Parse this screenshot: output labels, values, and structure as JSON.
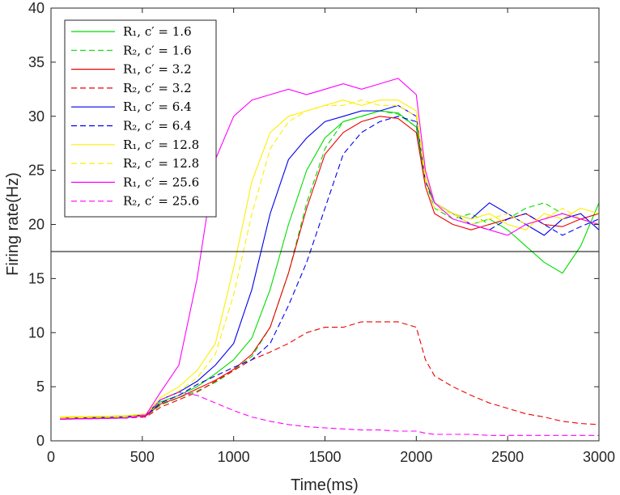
{
  "chart_data": {
    "type": "line",
    "title": "",
    "xlabel": "Time(ms)",
    "ylabel": "Firing rate(Hz)",
    "xlim": [
      0,
      3000
    ],
    "ylim": [
      0,
      40
    ],
    "xticks": [
      0,
      500,
      1000,
      1500,
      2000,
      2500,
      3000
    ],
    "yticks": [
      0,
      5,
      10,
      15,
      20,
      25,
      30,
      35,
      40
    ],
    "grid": false,
    "legend_position": "top-left",
    "threshold": {
      "y": 17.5,
      "color": "#000000"
    },
    "series": [
      {
        "name": "R₁, c′ = 1.6",
        "color": "#00dd00",
        "dash": "solid",
        "x": [
          50,
          400,
          520,
          600,
          700,
          800,
          900,
          1000,
          1100,
          1200,
          1300,
          1400,
          1500,
          1600,
          1700,
          1800,
          1900,
          2000,
          2050,
          2100,
          2200,
          2300,
          2400,
          2500,
          2600,
          2700,
          2800,
          2900,
          3000
        ],
        "y": [
          2.2,
          2.3,
          2.4,
          3.6,
          4.2,
          5,
          6.2,
          7.5,
          9.5,
          14,
          20,
          25,
          28,
          29.5,
          30,
          30.5,
          30.3,
          29,
          24,
          22,
          21,
          20,
          20.5,
          19.5,
          18,
          16.5,
          15.5,
          18,
          22
        ]
      },
      {
        "name": "R₂, c′ = 1.6",
        "color": "#00dd00",
        "dash": "dashed",
        "x": [
          50,
          400,
          520,
          600,
          700,
          800,
          900,
          1000,
          1100,
          1200,
          1300,
          1400,
          1500,
          1600,
          1700,
          1800,
          1900,
          2000,
          2050,
          2100,
          2200,
          2300,
          2400,
          2500,
          2600,
          2700,
          2800,
          2900,
          3000
        ],
        "y": [
          2.0,
          2.1,
          2.3,
          3.3,
          4.0,
          4.6,
          5.4,
          6.5,
          7.8,
          10.5,
          15.5,
          22,
          27,
          29.5,
          30,
          30.5,
          30.2,
          29,
          24,
          21.5,
          20.5,
          21,
          20,
          20.5,
          21.5,
          22,
          21,
          20.5,
          20
        ]
      },
      {
        "name": "R₁, c′ = 3.2",
        "color": "#ee0000",
        "dash": "solid",
        "x": [
          50,
          400,
          520,
          600,
          700,
          800,
          900,
          1000,
          1100,
          1200,
          1300,
          1400,
          1500,
          1600,
          1700,
          1800,
          1900,
          2000,
          2050,
          2100,
          2200,
          2300,
          2400,
          2500,
          2600,
          2700,
          2800,
          2900,
          3000
        ],
        "y": [
          2.1,
          2.2,
          2.3,
          3.4,
          4.0,
          4.8,
          5.6,
          6.6,
          8.0,
          10.5,
          15.5,
          21.5,
          26.5,
          28.5,
          29.5,
          30,
          29.8,
          28.5,
          23.5,
          21,
          20,
          19.5,
          20,
          20.5,
          21,
          20,
          19.8,
          20.5,
          21
        ]
      },
      {
        "name": "R₂, c′ = 3.2",
        "color": "#ee0000",
        "dash": "dashed",
        "x": [
          50,
          400,
          520,
          600,
          700,
          800,
          900,
          1000,
          1100,
          1200,
          1300,
          1400,
          1500,
          1600,
          1700,
          1800,
          1900,
          2000,
          2050,
          2100,
          2200,
          2300,
          2400,
          2500,
          2600,
          2700,
          2800,
          2900,
          3000
        ],
        "y": [
          2.0,
          2.1,
          2.2,
          3.1,
          3.8,
          4.5,
          5.5,
          6.5,
          7.5,
          8.2,
          9.0,
          10.0,
          10.5,
          10.5,
          11.0,
          11.0,
          11.0,
          10.5,
          7.5,
          6.0,
          5.0,
          4.2,
          3.5,
          3.0,
          2.5,
          2.2,
          1.8,
          1.6,
          1.5
        ]
      },
      {
        "name": "R₁, c′ = 6.4",
        "color": "#0000ee",
        "dash": "solid",
        "x": [
          50,
          400,
          520,
          600,
          700,
          800,
          900,
          1000,
          1100,
          1200,
          1300,
          1400,
          1500,
          1600,
          1700,
          1800,
          1900,
          2000,
          2050,
          2100,
          2200,
          2300,
          2400,
          2500,
          2600,
          2700,
          2800,
          2900,
          3000
        ],
        "y": [
          2.0,
          2.2,
          2.4,
          3.8,
          4.5,
          5.5,
          7.0,
          9.0,
          14.0,
          21.0,
          26.0,
          28.0,
          29.5,
          30.0,
          30.5,
          30.5,
          31.0,
          30.0,
          24.0,
          22.0,
          21.0,
          20.5,
          22.0,
          21.0,
          20.0,
          19.0,
          20.5,
          21.0,
          19.5
        ]
      },
      {
        "name": "R₂, c′ = 6.4",
        "color": "#0000ee",
        "dash": "dashed",
        "x": [
          50,
          400,
          520,
          600,
          700,
          800,
          900,
          1000,
          1100,
          1200,
          1300,
          1400,
          1500,
          1600,
          1700,
          1800,
          1900,
          2000,
          2050,
          2100,
          2200,
          2300,
          2400,
          2500,
          2600,
          2700,
          2800,
          2900,
          3000
        ],
        "y": [
          2.0,
          2.1,
          2.3,
          3.5,
          4.2,
          5.2,
          6.0,
          6.8,
          7.5,
          9.0,
          12.5,
          16.5,
          21.5,
          26.5,
          28.5,
          29.5,
          30.0,
          29.5,
          24.0,
          22.0,
          21.0,
          20.0,
          19.5,
          20.5,
          21.0,
          20.0,
          19.0,
          19.8,
          20.5
        ]
      },
      {
        "name": "R₁, c′ = 12.8",
        "color": "#ffee00",
        "dash": "solid",
        "x": [
          50,
          400,
          520,
          600,
          700,
          800,
          900,
          1000,
          1100,
          1200,
          1300,
          1400,
          1500,
          1600,
          1700,
          1800,
          1900,
          2000,
          2050,
          2100,
          2200,
          2300,
          2400,
          2500,
          2600,
          2700,
          2800,
          2900,
          3000
        ],
        "y": [
          2.2,
          2.3,
          2.5,
          4.0,
          5.0,
          6.5,
          9.0,
          16.0,
          24.0,
          28.5,
          30.0,
          30.5,
          31.0,
          31.5,
          31.0,
          31.5,
          31.5,
          30.5,
          24.5,
          22.0,
          21.0,
          20.5,
          21.0,
          20.0,
          19.5,
          21.0,
          20.5,
          21.5,
          21.0
        ]
      },
      {
        "name": "R₂, c′ = 12.8",
        "color": "#ffee00",
        "dash": "dashed",
        "x": [
          50,
          400,
          520,
          600,
          700,
          800,
          900,
          1000,
          1100,
          1200,
          1300,
          1400,
          1500,
          1600,
          1700,
          1800,
          1900,
          2000,
          2050,
          2100,
          2200,
          2300,
          2400,
          2500,
          2600,
          2700,
          2800,
          2900,
          3000
        ],
        "y": [
          2.1,
          2.2,
          2.4,
          3.8,
          4.6,
          5.8,
          8.0,
          13.5,
          21.0,
          27.0,
          29.5,
          30.5,
          31.0,
          31.0,
          31.5,
          31.0,
          31.0,
          30.0,
          24.0,
          21.5,
          21.0,
          20.0,
          20.5,
          21.0,
          20.0,
          20.5,
          21.5,
          20.5,
          20.0
        ]
      },
      {
        "name": "R₁, c′ = 25.6",
        "color": "#ff00ff",
        "dash": "solid",
        "x": [
          50,
          400,
          520,
          600,
          700,
          800,
          900,
          1000,
          1100,
          1200,
          1300,
          1400,
          1500,
          1600,
          1700,
          1800,
          1900,
          2000,
          2050,
          2100,
          2200,
          2300,
          2400,
          2500,
          2600,
          2700,
          2800,
          2900,
          3000
        ],
        "y": [
          2.0,
          2.1,
          2.4,
          4.5,
          7.0,
          15.0,
          26.0,
          30.0,
          31.5,
          32.0,
          32.5,
          32.0,
          32.5,
          33.0,
          32.5,
          33.0,
          33.5,
          32.0,
          25.0,
          22.0,
          20.5,
          20.0,
          19.5,
          19.0,
          20.0,
          20.5,
          21.0,
          20.5,
          20.0
        ]
      },
      {
        "name": "R₂, c′ = 25.6",
        "color": "#ff00ff",
        "dash": "dashed",
        "x": [
          50,
          400,
          520,
          600,
          700,
          800,
          900,
          1000,
          1100,
          1200,
          1300,
          1400,
          1500,
          1600,
          1700,
          1800,
          1900,
          2000,
          2050,
          2100,
          2200,
          2300,
          2400,
          2500,
          2600,
          2700,
          2800,
          2900,
          3000
        ],
        "y": [
          2.0,
          2.1,
          2.3,
          3.8,
          4.5,
          4.2,
          3.5,
          2.8,
          2.2,
          1.8,
          1.5,
          1.3,
          1.2,
          1.1,
          1.0,
          1.0,
          0.9,
          0.9,
          0.7,
          0.6,
          0.6,
          0.6,
          0.5,
          0.5,
          0.5,
          0.5,
          0.5,
          0.5,
          0.5
        ]
      }
    ]
  }
}
